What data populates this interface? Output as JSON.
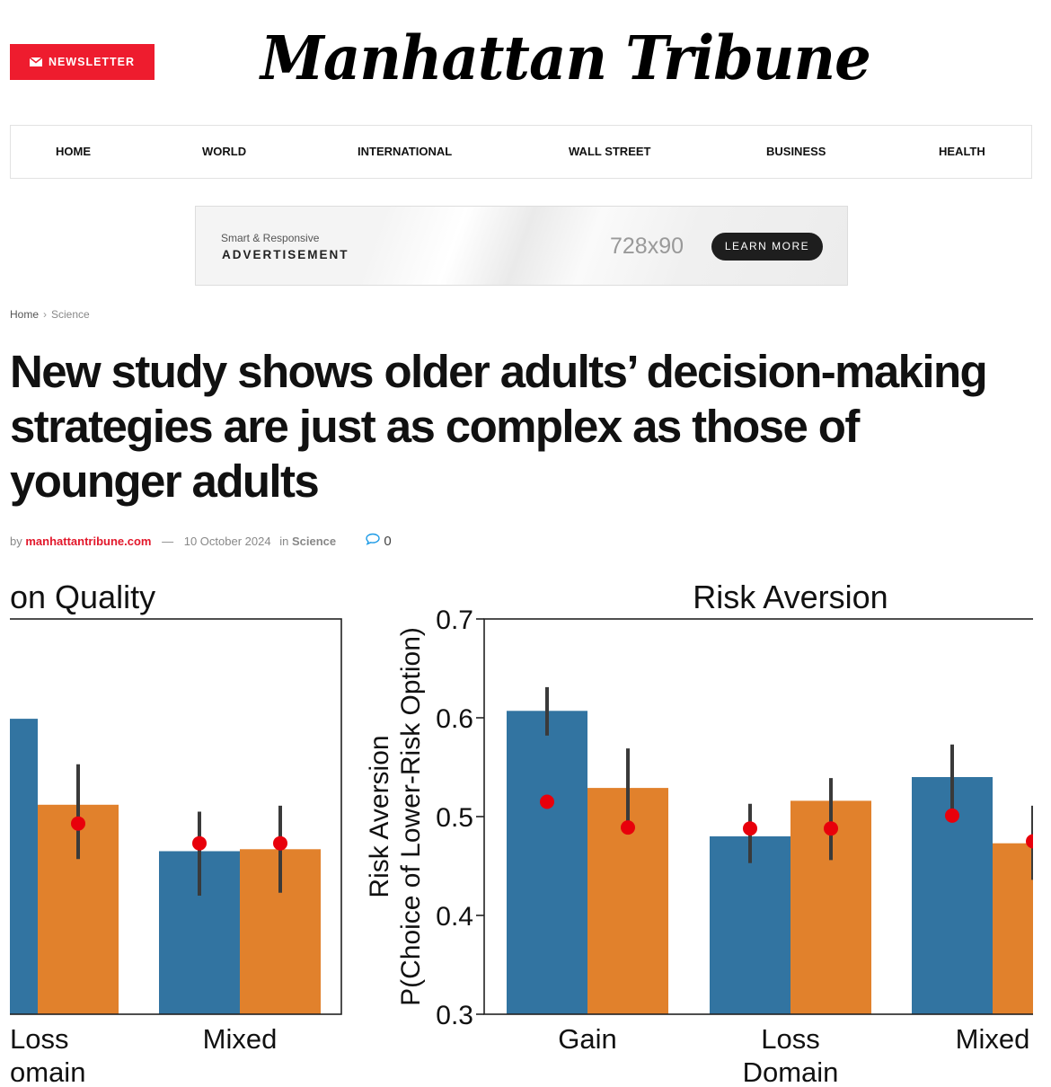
{
  "header": {
    "newsletter_label": "NEWSLETTER",
    "newsletter_icon": "envelope-icon",
    "logo_text": "Manhattan Tribune",
    "accent_color": "#ee1c2e"
  },
  "nav": {
    "items": [
      {
        "label": "HOME"
      },
      {
        "label": "WORLD"
      },
      {
        "label": "INTERNATIONAL"
      },
      {
        "label": "WALL STREET"
      },
      {
        "label": "BUSINESS"
      },
      {
        "label": "HEALTH"
      }
    ]
  },
  "ad": {
    "tagline": "Smart & Responsive",
    "label": "ADVERTISEMENT",
    "size": "728x90",
    "cta": "LEARN MORE"
  },
  "breadcrumb": {
    "home": "Home",
    "current": "Science"
  },
  "article": {
    "title": "New study shows older adults’ decision-making strategies are just as complex as those of younger adults",
    "by": "by",
    "author": "manhattantribune.com",
    "dash": "—",
    "date": "10 October 2024",
    "in": "in",
    "category": "Science",
    "comments": "0"
  },
  "chart_data": [
    {
      "type": "bar",
      "title": "on Quality",
      "categories": [
        "Loss",
        "Mixed"
      ],
      "xlabel": "omain",
      "colors": [
        "#3274a1",
        "#e1812c"
      ],
      "marker_color": "#e8000b",
      "series": [
        {
          "values": [
            0.599,
            0.465
          ],
          "ci": [
            [
              null,
              null
            ],
            [
              0.42,
              0.505
            ]
          ],
          "markers": [
            null,
            0.473
          ]
        },
        {
          "values": [
            0.512,
            0.467
          ],
          "ci": [
            [
              0.457,
              0.553
            ],
            [
              0.423,
              0.511
            ]
          ],
          "markers": [
            0.493,
            0.473
          ]
        }
      ]
    },
    {
      "type": "bar",
      "title": "Risk Aversion",
      "ylabel": [
        "Risk Aversion",
        "P(Choice of Lower-Risk Option)"
      ],
      "xlabel": "Domain",
      "categories": [
        "Gain",
        "Loss",
        "Mixed"
      ],
      "ylim": [
        0.3,
        0.7
      ],
      "yticks": [
        "0.3",
        "0.4",
        "0.5",
        "0.6",
        "0.7"
      ],
      "colors": [
        "#3274a1",
        "#e1812c"
      ],
      "marker_color": "#e8000b",
      "series": [
        {
          "values": [
            0.607,
            0.48,
            0.54
          ],
          "ci": [
            [
              0.582,
              0.631
            ],
            [
              0.453,
              0.513
            ],
            [
              0.503,
              0.573
            ]
          ],
          "markers": [
            0.515,
            0.488,
            0.501
          ]
        },
        {
          "values": [
            0.529,
            0.516,
            0.473
          ],
          "ci": [
            [
              0.482,
              0.569
            ],
            [
              0.456,
              0.539
            ],
            [
              0.436,
              0.511
            ]
          ],
          "markers": [
            0.489,
            0.488,
            0.475
          ]
        }
      ]
    }
  ]
}
